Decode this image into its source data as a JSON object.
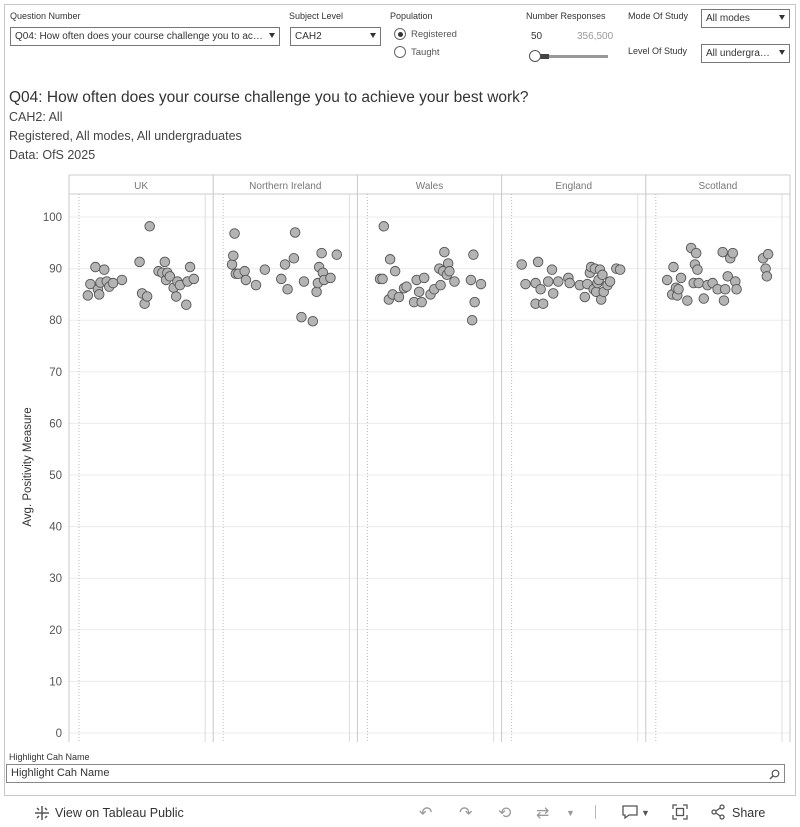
{
  "filters": {
    "question_number": {
      "label": "Question Number",
      "value": "Q04: How often does your course challenge you to achieve your best work?"
    },
    "subject_level": {
      "label": "Subject Level",
      "value": "CAH2"
    },
    "population": {
      "label": "Population",
      "options": [
        "Registered",
        "Taught"
      ],
      "selected": "Registered"
    },
    "number_responses": {
      "label": "Number Responses",
      "min_label": "50",
      "max_label": "356,500"
    },
    "mode_of_study": {
      "label": "Mode Of Study",
      "value": "All modes"
    },
    "level_of_study": {
      "label": "Level Of Study",
      "value": "All undergraduates"
    }
  },
  "header": {
    "title": "Q04: How often does your course challenge you to achieve your best work?",
    "line1": "CAH2: All",
    "line2": "Registered, All modes, All undergraduates",
    "line3": "Data: OfS 2025"
  },
  "chart_data": {
    "type": "scatter",
    "y_label": "Avg. Positivity Measure",
    "y_ticks": [
      "100",
      "90",
      "80",
      "70",
      "60",
      "50",
      "40",
      "30",
      "20",
      "10",
      "0"
    ],
    "ylim": [
      0,
      100
    ],
    "panels": [
      {
        "name": "UK",
        "points": [
          [
            0.07,
            84.8
          ],
          [
            0.09,
            87
          ],
          [
            0.13,
            90.3
          ],
          [
            0.15,
            86
          ],
          [
            0.16,
            85
          ],
          [
            0.17,
            87.3
          ],
          [
            0.2,
            89.8
          ],
          [
            0.22,
            87.5
          ],
          [
            0.24,
            86.5
          ],
          [
            0.27,
            87.2
          ],
          [
            0.34,
            87.8
          ],
          [
            0.48,
            91.3
          ],
          [
            0.5,
            85.2
          ],
          [
            0.52,
            83.2
          ],
          [
            0.54,
            84.6
          ],
          [
            0.56,
            98.2
          ],
          [
            0.63,
            89.5
          ],
          [
            0.66,
            89.2
          ],
          [
            0.68,
            91.3
          ],
          [
            0.69,
            87.8
          ],
          [
            0.7,
            89.2
          ],
          [
            0.72,
            88.5
          ],
          [
            0.75,
            86.3
          ],
          [
            0.77,
            84.6
          ],
          [
            0.78,
            87.5
          ],
          [
            0.8,
            86.8
          ],
          [
            0.85,
            83
          ],
          [
            0.86,
            87.5
          ],
          [
            0.88,
            90.3
          ],
          [
            0.91,
            88
          ]
        ]
      },
      {
        "name": "Northern Ireland",
        "points": [
          [
            0.07,
            90.8
          ],
          [
            0.08,
            92.5
          ],
          [
            0.09,
            96.8
          ],
          [
            0.1,
            89
          ],
          [
            0.12,
            89
          ],
          [
            0.17,
            89.5
          ],
          [
            0.18,
            87.8
          ],
          [
            0.26,
            86.8
          ],
          [
            0.33,
            89.8
          ],
          [
            0.46,
            88
          ],
          [
            0.49,
            90.8
          ],
          [
            0.51,
            86
          ],
          [
            0.56,
            92
          ],
          [
            0.57,
            97
          ],
          [
            0.62,
            80.6
          ],
          [
            0.64,
            87.5
          ],
          [
            0.71,
            79.8
          ],
          [
            0.74,
            85.5
          ],
          [
            0.75,
            87.2
          ],
          [
            0.76,
            90.3
          ],
          [
            0.78,
            93
          ],
          [
            0.79,
            89.2
          ],
          [
            0.8,
            87.8
          ],
          [
            0.85,
            88.2
          ],
          [
            0.9,
            92.7
          ]
        ]
      },
      {
        "name": "Wales",
        "points": [
          [
            0.1,
            88
          ],
          [
            0.12,
            88
          ],
          [
            0.13,
            98.2
          ],
          [
            0.17,
            84
          ],
          [
            0.18,
            91.8
          ],
          [
            0.2,
            85
          ],
          [
            0.22,
            89.5
          ],
          [
            0.25,
            84.5
          ],
          [
            0.29,
            86.2
          ],
          [
            0.31,
            86.5
          ],
          [
            0.37,
            83.5
          ],
          [
            0.39,
            87.8
          ],
          [
            0.41,
            85.5
          ],
          [
            0.43,
            83.5
          ],
          [
            0.45,
            88.2
          ],
          [
            0.5,
            85
          ],
          [
            0.53,
            86
          ],
          [
            0.57,
            90
          ],
          [
            0.58,
            86.8
          ],
          [
            0.6,
            89.5
          ],
          [
            0.61,
            93.2
          ],
          [
            0.63,
            88.8
          ],
          [
            0.64,
            91
          ],
          [
            0.65,
            89.5
          ],
          [
            0.69,
            87.5
          ],
          [
            0.82,
            87.8
          ],
          [
            0.83,
            80
          ],
          [
            0.84,
            92.7
          ],
          [
            0.85,
            83.5
          ],
          [
            0.9,
            87
          ]
        ]
      },
      {
        "name": "England",
        "points": [
          [
            0.08,
            90.8
          ],
          [
            0.11,
            87
          ],
          [
            0.19,
            87.2
          ],
          [
            0.19,
            83.2
          ],
          [
            0.21,
            91.3
          ],
          [
            0.23,
            86
          ],
          [
            0.25,
            83.2
          ],
          [
            0.29,
            87.5
          ],
          [
            0.32,
            89.8
          ],
          [
            0.33,
            85.2
          ],
          [
            0.37,
            87.5
          ],
          [
            0.45,
            88.2
          ],
          [
            0.46,
            87.2
          ],
          [
            0.54,
            86.8
          ],
          [
            0.58,
            84.5
          ],
          [
            0.6,
            87
          ],
          [
            0.62,
            89.2
          ],
          [
            0.63,
            90.3
          ],
          [
            0.65,
            86
          ],
          [
            0.66,
            90
          ],
          [
            0.67,
            85.5
          ],
          [
            0.68,
            87.2
          ],
          [
            0.69,
            87.8
          ],
          [
            0.7,
            89.8
          ],
          [
            0.71,
            84
          ],
          [
            0.72,
            88.8
          ],
          [
            0.73,
            85.5
          ],
          [
            0.76,
            86.8
          ],
          [
            0.78,
            87.5
          ],
          [
            0.83,
            90
          ],
          [
            0.86,
            89.8
          ]
        ]
      },
      {
        "name": "Scotland",
        "points": [
          [
            0.09,
            87.8
          ],
          [
            0.13,
            85
          ],
          [
            0.14,
            90.3
          ],
          [
            0.16,
            86.3
          ],
          [
            0.17,
            84.8
          ],
          [
            0.18,
            86
          ],
          [
            0.2,
            88.2
          ],
          [
            0.25,
            83.8
          ],
          [
            0.28,
            94
          ],
          [
            0.3,
            87.2
          ],
          [
            0.31,
            90.8
          ],
          [
            0.32,
            93
          ],
          [
            0.33,
            89.8
          ],
          [
            0.34,
            87.2
          ],
          [
            0.38,
            84.2
          ],
          [
            0.41,
            86.8
          ],
          [
            0.45,
            87.2
          ],
          [
            0.49,
            86
          ],
          [
            0.53,
            93.2
          ],
          [
            0.54,
            83.8
          ],
          [
            0.55,
            86
          ],
          [
            0.57,
            88.5
          ],
          [
            0.59,
            92
          ],
          [
            0.61,
            93
          ],
          [
            0.63,
            87.5
          ],
          [
            0.64,
            86
          ],
          [
            0.85,
            92
          ],
          [
            0.87,
            90
          ],
          [
            0.88,
            88.5
          ],
          [
            0.89,
            92.8
          ]
        ]
      }
    ]
  },
  "highlight": {
    "label": "Highlight Cah Name",
    "placeholder": "Highlight Cah Name"
  },
  "footer": {
    "view_label": "View on Tableau Public",
    "share_label": "Share"
  },
  "colors": {
    "mark_fill": "#b4b4b4",
    "mark_stroke": "#555555"
  }
}
